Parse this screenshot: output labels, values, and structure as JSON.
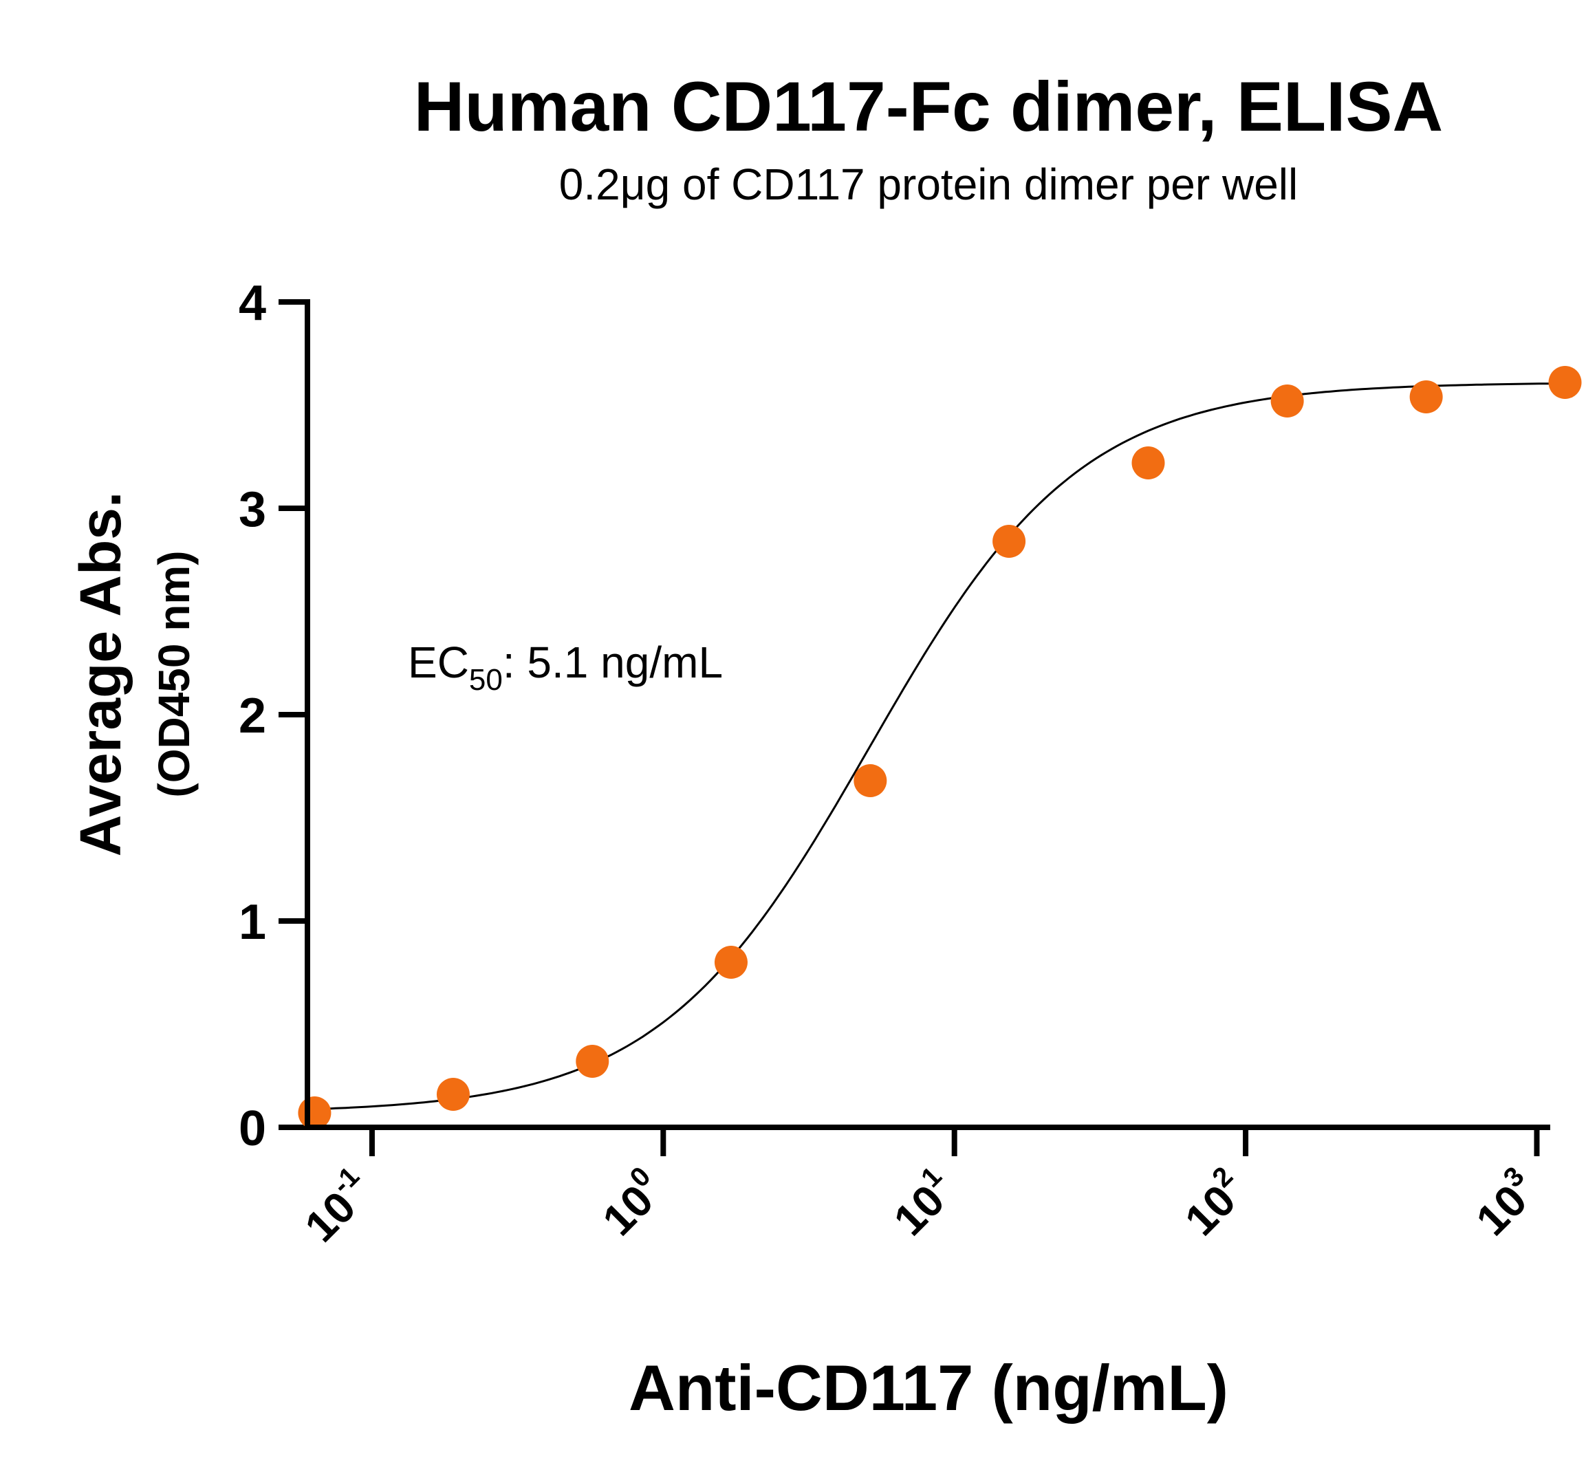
{
  "chart_data": {
    "type": "scatter",
    "title": "Human CD117-Fc dimer, ELISA",
    "subtitle": "0.2μg of CD117 protein dimer per well",
    "xlabel": "Anti-CD117  (ng/mL)",
    "ylabel": "Average Abs.",
    "ylabel_sub": "(OD450 nm)",
    "x_scale": "log",
    "xlim": [
      0.06,
      1100
    ],
    "ylim": [
      0,
      4
    ],
    "x_ticks": [
      {
        "value": 0.1,
        "base": "10",
        "exp": "-1"
      },
      {
        "value": 1,
        "base": "10",
        "exp": "0"
      },
      {
        "value": 10,
        "base": "10",
        "exp": "1"
      },
      {
        "value": 100,
        "base": "10",
        "exp": "2"
      },
      {
        "value": 1000,
        "base": "10",
        "exp": "3"
      }
    ],
    "y_ticks": [
      "0",
      "1",
      "2",
      "3",
      "4"
    ],
    "grid": false,
    "annotation": {
      "prefix": "EC",
      "sub": "50",
      "rest": ": 5.1 ng/mL"
    },
    "series": [
      {
        "marker_color": "#f26d12",
        "x": [
          0.0635,
          0.19,
          0.571,
          1.71,
          5.14,
          15.4,
          46.3,
          139,
          417,
          1250
        ],
        "y": [
          0.07,
          0.16,
          0.32,
          0.8,
          1.68,
          2.84,
          3.22,
          3.52,
          3.54,
          3.61
        ]
      }
    ],
    "fit_curve": {
      "model": "4PL",
      "bottom": 0.07,
      "top": 3.61,
      "ec50": 5.1,
      "hill": 1.2,
      "color": "#000000"
    }
  }
}
